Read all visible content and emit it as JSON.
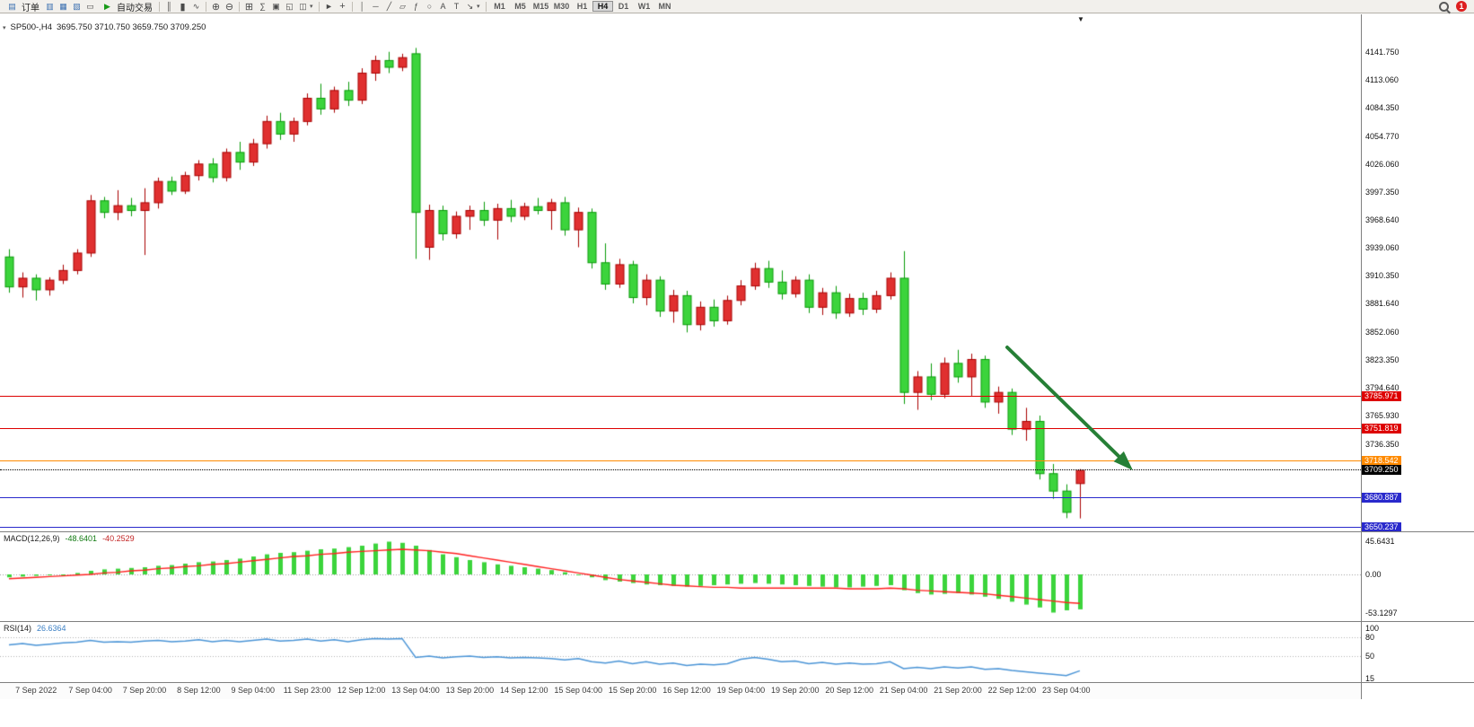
{
  "toolbar": {
    "new_order_label": "订单",
    "auto_trading_label": "自动交易",
    "timeframes": [
      "M1",
      "M5",
      "M15",
      "M30",
      "H1",
      "H4",
      "D1",
      "W1",
      "MN"
    ],
    "active_timeframe": "H4",
    "notification_count": "1"
  },
  "chart": {
    "symbol_period": "SP500-,H4",
    "ohlc": "3695.750 3710.750 3659.750 3709.250"
  },
  "macd_panel": {
    "name": "MACD(12,26,9)",
    "value": "-48.6401",
    "signal": "-40.2529",
    "scale": [
      "45.6431",
      "0.00",
      "-53.1297"
    ]
  },
  "rsi_panel": {
    "name": "RSI(14)",
    "value": "26.6364",
    "scale": [
      "100",
      "80",
      "50",
      "15"
    ]
  },
  "price_scale": [
    "4141.750",
    "4113.060",
    "4084.350",
    "4054.770",
    "4026.060",
    "3997.350",
    "3968.640",
    "3939.060",
    "3910.350",
    "3881.640",
    "3852.060",
    "3823.350",
    "3794.640",
    "3765.930",
    "3736.350"
  ],
  "levels": [
    {
      "label": "3785.971",
      "price": 3785.971,
      "color": "#dd0000",
      "style": "solid"
    },
    {
      "label": "3751.819",
      "price": 3751.819,
      "color": "#dd0000",
      "style": "solid"
    },
    {
      "label": "3718.542",
      "price": 3718.542,
      "color": "#ff8a00",
      "style": "solid"
    },
    {
      "label": "3709.250",
      "price": 3709.25,
      "color": "#000000",
      "style": "dotted"
    },
    {
      "label": "3680.887",
      "price": 3680.887,
      "color": "#2929cc",
      "style": "solid"
    },
    {
      "label": "3650.237",
      "price": 3650.237,
      "color": "#2929cc",
      "style": "solid"
    }
  ],
  "time_labels": [
    "7 Sep 2022",
    "7 Sep 04:00",
    "7 Sep 20:00",
    "8 Sep 12:00",
    "9 Sep 04:00",
    "11 Sep 23:00",
    "12 Sep 12:00",
    "13 Sep 04:00",
    "13 Sep 20:00",
    "14 Sep 12:00",
    "15 Sep 04:00",
    "15 Sep 20:00",
    "16 Sep 12:00",
    "19 Sep 04:00",
    "19 Sep 20:00",
    "20 Sep 12:00",
    "21 Sep 04:00",
    "21 Sep 20:00",
    "22 Sep 12:00",
    "23 Sep 04:00"
  ],
  "icons": {
    "order-ticket": "▤",
    "market-watch": "▥",
    "data-window": "▦",
    "navigator": "▧",
    "terminal": "▭",
    "play": "▶",
    "bar-chart": "║",
    "candle-chart": "▮",
    "line-chart": "∿",
    "zoom-in": "⊕",
    "zoom-out": "⊖",
    "grid": "⊞",
    "indicators": "∑",
    "tile": "▣",
    "cascade": "◱",
    "new-chart": "◫",
    "caret-down": "▾",
    "cursor": "►",
    "crosshair": "+",
    "vline": "│",
    "hline": "─",
    "trendline": "╱",
    "channel": "▱",
    "fibonacci": "ƒ",
    "ellipse": "○",
    "text": "A",
    "label": "T",
    "arrow-tool": "↘",
    "chart-menu": "▾",
    "shift-marker": "▼"
  },
  "colors": {
    "up": "#e03030",
    "up_border": "#a80000",
    "down": "#3cd43c",
    "down_border": "#089a08",
    "macd_hist": "#3cd43c",
    "macd_signal": "#ff2020",
    "rsi_line": "#4a94d6",
    "arrow": "#267f36"
  },
  "chart_data": {
    "type": "candlestick",
    "symbol": "SP500-",
    "period": "H4",
    "current_ohlc": {
      "open": 3695.75,
      "high": 3710.75,
      "low": 3659.75,
      "close": 3709.25
    },
    "note_convention": "red = up candle, green = down candle",
    "price_axis_ticks": [
      4141.75,
      4113.06,
      4084.35,
      4054.77,
      4026.06,
      3997.35,
      3968.64,
      3939.06,
      3910.35,
      3881.64,
      3852.06,
      3823.35,
      3794.64,
      3765.93,
      3736.35
    ],
    "candles_ohlc": [
      [
        3930,
        3938,
        3893,
        3899
      ],
      [
        3899,
        3914,
        3888,
        3908
      ],
      [
        3908,
        3912,
        3885,
        3896
      ],
      [
        3896,
        3909,
        3890,
        3906
      ],
      [
        3906,
        3922,
        3902,
        3916
      ],
      [
        3916,
        3938,
        3912,
        3934
      ],
      [
        3934,
        3994,
        3930,
        3988
      ],
      [
        3988,
        3992,
        3970,
        3976
      ],
      [
        3976,
        3999,
        3968,
        3983
      ],
      [
        3983,
        3991,
        3972,
        3978
      ],
      [
        3978,
        4001,
        3932,
        3986
      ],
      [
        3986,
        4012,
        3980,
        4008
      ],
      [
        4008,
        4013,
        3994,
        3998
      ],
      [
        3998,
        4018,
        3995,
        4014
      ],
      [
        4014,
        4030,
        4009,
        4026
      ],
      [
        4026,
        4032,
        4007,
        4012
      ],
      [
        4012,
        4042,
        4008,
        4038
      ],
      [
        4038,
        4049,
        4020,
        4028
      ],
      [
        4028,
        4052,
        4024,
        4047
      ],
      [
        4047,
        4076,
        4042,
        4070
      ],
      [
        4070,
        4079,
        4051,
        4057
      ],
      [
        4057,
        4074,
        4049,
        4070
      ],
      [
        4070,
        4099,
        4066,
        4094
      ],
      [
        4094,
        4109,
        4077,
        4083
      ],
      [
        4083,
        4106,
        4079,
        4102
      ],
      [
        4102,
        4111,
        4086,
        4092
      ],
      [
        4092,
        4125,
        4088,
        4120
      ],
      [
        4120,
        4138,
        4112,
        4133
      ],
      [
        4133,
        4142,
        4120,
        4126
      ],
      [
        4126,
        4140,
        4122,
        4136
      ],
      [
        4140,
        4146,
        3928,
        3976
      ],
      [
        3940,
        3984,
        3927,
        3978
      ],
      [
        3978,
        3983,
        3947,
        3954
      ],
      [
        3954,
        3977,
        3949,
        3972
      ],
      [
        3972,
        3983,
        3958,
        3978
      ],
      [
        3978,
        3987,
        3962,
        3968
      ],
      [
        3968,
        3985,
        3948,
        3980
      ],
      [
        3980,
        3989,
        3966,
        3972
      ],
      [
        3972,
        3986,
        3968,
        3982
      ],
      [
        3982,
        3991,
        3974,
        3978
      ],
      [
        3978,
        3990,
        3958,
        3986
      ],
      [
        3986,
        3992,
        3952,
        3958
      ],
      [
        3958,
        3981,
        3940,
        3976
      ],
      [
        3976,
        3980,
        3918,
        3924
      ],
      [
        3924,
        3944,
        3896,
        3902
      ],
      [
        3902,
        3928,
        3898,
        3922
      ],
      [
        3922,
        3926,
        3882,
        3888
      ],
      [
        3888,
        3912,
        3880,
        3906
      ],
      [
        3906,
        3910,
        3868,
        3874
      ],
      [
        3874,
        3896,
        3862,
        3890
      ],
      [
        3890,
        3895,
        3852,
        3860
      ],
      [
        3860,
        3884,
        3854,
        3878
      ],
      [
        3878,
        3886,
        3858,
        3864
      ],
      [
        3864,
        3890,
        3860,
        3885
      ],
      [
        3885,
        3906,
        3880,
        3900
      ],
      [
        3900,
        3924,
        3896,
        3918
      ],
      [
        3918,
        3926,
        3898,
        3904
      ],
      [
        3904,
        3916,
        3886,
        3892
      ],
      [
        3892,
        3910,
        3888,
        3906
      ],
      [
        3906,
        3912,
        3872,
        3878
      ],
      [
        3878,
        3898,
        3870,
        3893
      ],
      [
        3893,
        3900,
        3866,
        3872
      ],
      [
        3872,
        3892,
        3868,
        3887
      ],
      [
        3887,
        3893,
        3870,
        3876
      ],
      [
        3876,
        3895,
        3872,
        3890
      ],
      [
        3890,
        3914,
        3886,
        3908
      ],
      [
        3908,
        3936,
        3778,
        3790
      ],
      [
        3790,
        3812,
        3772,
        3806
      ],
      [
        3806,
        3820,
        3782,
        3788
      ],
      [
        3788,
        3826,
        3784,
        3820
      ],
      [
        3820,
        3834,
        3800,
        3806
      ],
      [
        3806,
        3830,
        3786,
        3824
      ],
      [
        3824,
        3828,
        3774,
        3780
      ],
      [
        3780,
        3796,
        3768,
        3790
      ],
      [
        3790,
        3794,
        3746,
        3752
      ],
      [
        3752,
        3774,
        3740,
        3760
      ],
      [
        3760,
        3766,
        3700,
        3706
      ],
      [
        3706,
        3716,
        3680,
        3688
      ],
      [
        3688,
        3695,
        3660,
        3666
      ],
      [
        3695.75,
        3710.75,
        3659.75,
        3709.25
      ]
    ],
    "macd_hist": [
      -4,
      -3,
      -2,
      -1,
      0,
      2,
      5,
      7,
      8,
      9,
      10,
      12,
      13,
      15,
      17,
      18,
      20,
      22,
      25,
      28,
      30,
      31,
      33,
      35,
      36,
      38,
      40,
      43,
      45.64,
      44,
      40,
      34,
      28,
      24,
      20,
      17,
      14,
      12,
      10,
      8,
      6,
      3,
      0,
      -4,
      -8,
      -10,
      -12,
      -14,
      -15,
      -16,
      -17,
      -16,
      -15,
      -14,
      -13,
      -12,
      -13,
      -14,
      -15,
      -16,
      -17,
      -18,
      -18,
      -17,
      -16,
      -15,
      -22,
      -26,
      -28,
      -27,
      -26,
      -28,
      -31,
      -34,
      -38,
      -42,
      -46,
      -53.13,
      -50,
      -48.64
    ],
    "macd_signal": [
      -6,
      -5,
      -4,
      -3,
      -2,
      -1,
      0,
      2,
      3,
      5,
      6,
      8,
      9,
      11,
      12,
      14,
      15,
      17,
      19,
      21,
      23,
      25,
      26,
      28,
      29,
      31,
      32,
      33,
      34,
      35,
      34,
      33,
      31,
      29,
      26,
      23,
      20,
      17,
      14,
      11,
      8,
      5,
      2,
      -1,
      -4,
      -7,
      -9,
      -11,
      -13,
      -15,
      -16,
      -17,
      -18,
      -18,
      -19,
      -19,
      -19,
      -19,
      -19,
      -19,
      -19,
      -19,
      -20,
      -20,
      -20,
      -19,
      -20,
      -22,
      -23,
      -24,
      -25,
      -26,
      -27,
      -29,
      -31,
      -33,
      -35,
      -37,
      -39,
      -40.25
    ],
    "rsi": [
      68,
      70,
      67,
      69,
      71,
      72,
      75,
      72,
      73,
      72,
      74,
      75,
      73,
      74,
      76,
      73,
      75,
      73,
      75,
      77,
      74,
      75,
      77,
      74,
      76,
      73,
      76,
      78,
      77,
      78,
      48,
      50,
      47,
      49,
      50,
      48,
      49,
      47,
      48,
      47,
      46,
      44,
      46,
      41,
      39,
      42,
      38,
      41,
      37,
      39,
      35,
      37,
      36,
      38,
      45,
      48,
      45,
      41,
      42,
      38,
      40,
      37,
      39,
      37,
      38,
      41,
      30,
      32,
      30,
      33,
      31,
      33,
      29,
      30,
      27,
      25,
      23,
      21,
      19,
      26.64
    ]
  }
}
